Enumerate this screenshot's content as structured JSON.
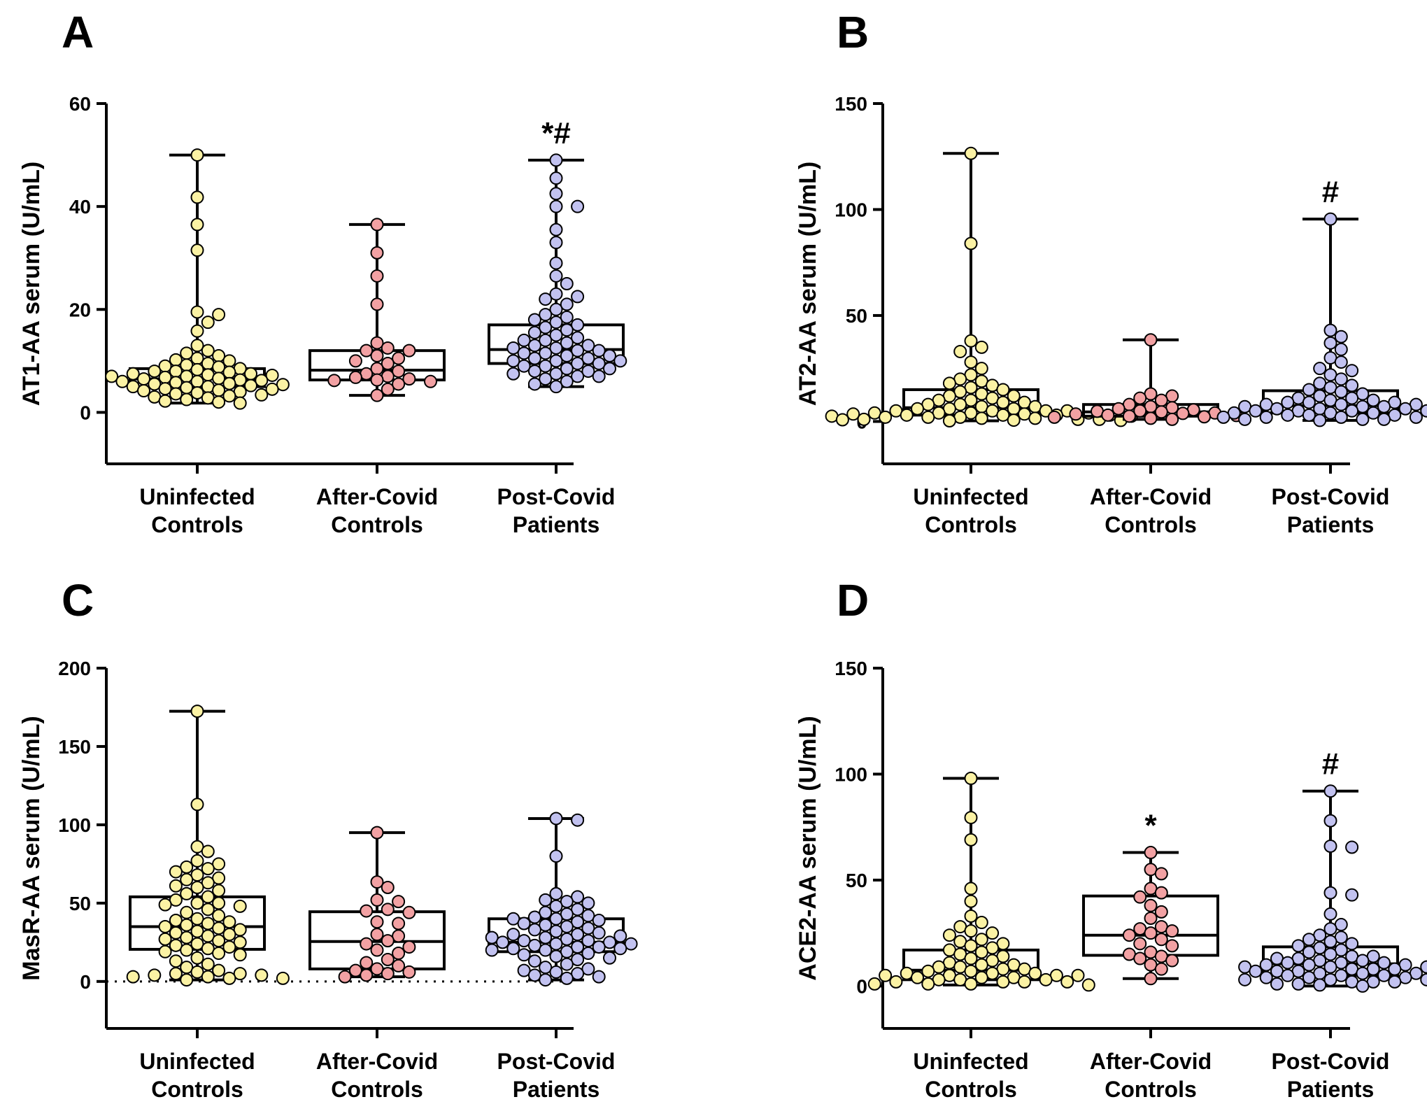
{
  "figure": {
    "colors": {
      "uninfected": "#fbf2a4",
      "after_covid": "#f2a1a3",
      "post_covid": "#c2c2f0",
      "line": "#000000"
    }
  },
  "chart_data": [
    {
      "type": "box",
      "panel": "A",
      "ylabel": "AT1-AA serum (U/mL)",
      "ylim": [
        -10,
        60
      ],
      "yticks": [
        0,
        20,
        40,
        60
      ],
      "zero_dotted_line": false,
      "categories": [
        "Uninfected\nControls",
        "After-Covid\nControls",
        "Post-Covid\nPatients"
      ],
      "annotations": [
        "",
        "",
        "*#"
      ],
      "series": [
        {
          "name": "Uninfected Controls",
          "color_key": "uninfected",
          "min": 1.8,
          "q1": 5,
          "median": 6.5,
          "q3": 8.5,
          "max": 50,
          "points": [
            50,
            41.8,
            36.5,
            31.5,
            19.5,
            19,
            17.5,
            15.8,
            13,
            12,
            11.5,
            11,
            10.5,
            10.2,
            10,
            9.5,
            9.2,
            9,
            8.8,
            8.5,
            8.3,
            8,
            8,
            7.8,
            7.5,
            7.5,
            7.3,
            7.2,
            7,
            7,
            6.8,
            6.6,
            6.5,
            6.3,
            6.2,
            6,
            6,
            5.8,
            5.6,
            5.5,
            5.4,
            5.2,
            5,
            5,
            4.8,
            4.6,
            4.5,
            4.3,
            4.2,
            4,
            3.8,
            3.6,
            3.4,
            3.2,
            3,
            2.8,
            2.5,
            2.2,
            2,
            1.8
          ]
        },
        {
          "name": "After-Covid Controls",
          "color_key": "after_covid",
          "min": 3.3,
          "q1": 6.3,
          "median": 8.2,
          "q3": 12,
          "max": 36.5,
          "points": [
            36.5,
            31,
            26.5,
            21,
            13.5,
            12.5,
            12,
            12,
            11,
            10.5,
            10,
            9.5,
            8.5,
            8,
            7.5,
            7,
            6.8,
            6.5,
            6.3,
            6.2,
            6,
            5.5,
            4.5,
            3.3
          ]
        },
        {
          "name": "Post-Covid Patients",
          "color_key": "post_covid",
          "min": 5,
          "q1": 9.5,
          "median": 12.2,
          "q3": 17,
          "max": 49,
          "points": [
            49,
            45.5,
            42.5,
            40,
            40,
            35.5,
            33,
            29,
            26.5,
            25,
            23,
            22.5,
            22,
            21,
            20,
            19,
            18.5,
            18,
            17.5,
            17,
            16.5,
            16,
            15.5,
            15,
            14.5,
            14,
            14,
            13.5,
            13,
            13,
            12.5,
            12.5,
            12,
            12,
            11.5,
            11.5,
            11,
            11,
            10.5,
            10.5,
            10,
            10,
            10,
            9.5,
            9.5,
            9,
            9,
            8.5,
            8.5,
            8,
            8,
            7.5,
            7.5,
            7,
            7,
            6.5,
            6,
            5.5,
            5
          ]
        }
      ]
    },
    {
      "type": "box",
      "panel": "B",
      "ylabel": "AT2-AA serum (U/mL)",
      "ylim": [
        -20,
        150
      ],
      "yticks": [
        0,
        50,
        100,
        150
      ],
      "zero_dotted_line": false,
      "categories": [
        "Uninfected\nControls",
        "After-Covid\nControls",
        "Post-Covid\nPatients"
      ],
      "annotations": [
        "",
        "",
        "#"
      ],
      "series": [
        {
          "name": "Uninfected Controls",
          "color_key": "uninfected",
          "min": 0.3,
          "q1": 3,
          "median": 6.5,
          "q3": 15,
          "max": 126.5,
          "points": [
            126.5,
            84,
            38,
            35,
            33,
            28,
            25,
            22,
            20,
            19,
            18,
            17,
            16,
            15,
            14,
            13,
            12,
            12,
            11,
            10,
            10,
            9,
            9,
            8,
            8,
            7,
            7,
            6,
            6,
            6,
            5,
            5,
            5,
            5,
            4,
            4,
            4,
            4,
            3.5,
            3.5,
            3,
            3,
            3,
            3,
            2.5,
            2.5,
            2,
            2,
            2,
            1.5,
            1.5,
            1,
            1,
            1,
            0.8,
            0.6,
            0.5,
            0.3
          ]
        },
        {
          "name": "After-Covid Controls",
          "color_key": "after_covid",
          "min": 1,
          "q1": 2.5,
          "median": 4.5,
          "q3": 8,
          "max": 38.5,
          "points": [
            38.5,
            13,
            12,
            11,
            10,
            8,
            7,
            6.5,
            6,
            5.5,
            5,
            4.8,
            4.5,
            4,
            3.8,
            3.5,
            3,
            2.8,
            2.5,
            2.2,
            2,
            1.5,
            1
          ]
        },
        {
          "name": "Post-Covid Patients",
          "color_key": "post_covid",
          "min": 0.5,
          "q1": 4,
          "median": 7.5,
          "q3": 14.5,
          "max": 95.5,
          "points": [
            95.5,
            43,
            40,
            37,
            34,
            30,
            28,
            25,
            24,
            22,
            20,
            18,
            17,
            16,
            15,
            14,
            13,
            12,
            11,
            11,
            10,
            10,
            9,
            9,
            9,
            8,
            8,
            8,
            7,
            7,
            7,
            6,
            6,
            6,
            5,
            5,
            5,
            5,
            4,
            4,
            4,
            3,
            3,
            3,
            3,
            2,
            2,
            2,
            2,
            1,
            1,
            1,
            0.5
          ]
        }
      ]
    },
    {
      "type": "box",
      "panel": "C",
      "ylabel": "MasR-AA serum (U/mL)",
      "ylim": [
        -30,
        200
      ],
      "yticks": [
        0,
        50,
        100,
        150,
        200
      ],
      "zero_dotted_line": true,
      "categories": [
        "Uninfected\nControls",
        "After-Covid\nControls",
        "Post-Covid\nPatients"
      ],
      "annotations": [
        "",
        "",
        ""
      ],
      "series": [
        {
          "name": "Uninfected Controls",
          "color_key": "uninfected",
          "min": 1,
          "q1": 20.5,
          "median": 35,
          "q3": 54,
          "max": 172.5,
          "points": [
            172.5,
            113,
            86,
            83,
            77,
            75,
            73,
            72,
            70,
            68,
            66,
            65,
            63,
            61,
            60,
            58,
            56,
            54,
            52,
            50,
            50,
            49,
            48,
            46,
            44,
            42,
            40,
            39,
            38,
            37,
            36,
            35,
            34,
            33,
            32,
            31,
            30,
            29,
            28,
            27,
            26,
            25,
            24,
            23,
            22,
            21,
            20,
            19,
            18,
            17,
            15,
            13,
            11,
            9,
            7,
            6,
            5,
            5,
            4,
            4,
            3,
            3,
            2,
            2,
            1
          ]
        },
        {
          "name": "After-Covid Controls",
          "color_key": "after_covid",
          "min": 3,
          "q1": 8,
          "median": 25.5,
          "q3": 44.5,
          "max": 95,
          "points": [
            95,
            63.5,
            60,
            52,
            51,
            46,
            45,
            44,
            38,
            37,
            30,
            29,
            26,
            24,
            22,
            20,
            18,
            14,
            12,
            10,
            8,
            7,
            6,
            5,
            4,
            3
          ]
        },
        {
          "name": "Post-Covid Patients",
          "color_key": "post_covid",
          "min": 1,
          "q1": 19,
          "median": 25,
          "q3": 40,
          "max": 104,
          "points": [
            104,
            103,
            80,
            56,
            54,
            52,
            51,
            50,
            48,
            46,
            44,
            43,
            42,
            41,
            40,
            40,
            39,
            38,
            37,
            36,
            35,
            34,
            33,
            32,
            31,
            30,
            30,
            29,
            28,
            28,
            27,
            26,
            26,
            25,
            25,
            24,
            24,
            23,
            22,
            22,
            21,
            21,
            20,
            20,
            19,
            18,
            17,
            16,
            15,
            14,
            13,
            11,
            9,
            8,
            7,
            6,
            5,
            4,
            3,
            2,
            1
          ]
        }
      ]
    },
    {
      "type": "box",
      "panel": "D",
      "ylabel": "ACE2-AA serum (U/mL)",
      "ylim": [
        -20,
        150
      ],
      "yticks": [
        0,
        50,
        100,
        150
      ],
      "zero_dotted_line": false,
      "categories": [
        "Uninfected\nControls",
        "After-Covid\nControls",
        "Post-Covid\nPatients"
      ],
      "annotations": [
        "",
        "*",
        "#"
      ],
      "series": [
        {
          "name": "Uninfected Controls",
          "color_key": "uninfected",
          "min": 0.5,
          "q1": 3,
          "median": 7.5,
          "q3": 17,
          "max": 98,
          "points": [
            98,
            79.5,
            69,
            46,
            40,
            33,
            30,
            28,
            26,
            25,
            24,
            22,
            21,
            20,
            19,
            18,
            17,
            16,
            15,
            14,
            13,
            12,
            11,
            10,
            10,
            9,
            9,
            8,
            8,
            7,
            7,
            6,
            6,
            6,
            5,
            5,
            5,
            5,
            4,
            4,
            4,
            3,
            3,
            3,
            2,
            2,
            2,
            2,
            1,
            1,
            1,
            0.5
          ]
        },
        {
          "name": "After-Covid Controls",
          "color_key": "after_covid",
          "min": 3.5,
          "q1": 14.5,
          "median": 24,
          "q3": 42.5,
          "max": 63,
          "points": [
            63,
            55,
            53,
            46,
            44,
            42,
            38,
            35,
            32,
            28,
            27,
            26,
            25,
            24,
            22,
            20,
            19,
            16,
            15,
            14,
            13,
            12,
            10,
            8,
            3.5
          ]
        },
        {
          "name": "Post-Covid Patients",
          "color_key": "post_covid",
          "min": 0,
          "q1": 5,
          "median": 10.5,
          "q3": 18.5,
          "max": 92,
          "points": [
            92,
            78,
            66,
            65.5,
            44,
            43,
            34,
            29,
            27,
            24,
            23,
            22,
            21,
            20,
            19,
            18,
            17,
            16,
            15,
            14,
            14,
            13,
            13,
            12,
            12,
            11,
            11,
            11,
            10,
            10,
            10,
            9,
            9,
            9,
            8,
            8,
            8,
            7,
            7,
            7,
            6,
            6,
            6,
            5,
            5,
            5,
            4,
            4,
            4,
            3,
            3,
            3,
            2,
            2,
            2,
            1,
            1,
            0.5,
            0
          ]
        }
      ]
    }
  ]
}
